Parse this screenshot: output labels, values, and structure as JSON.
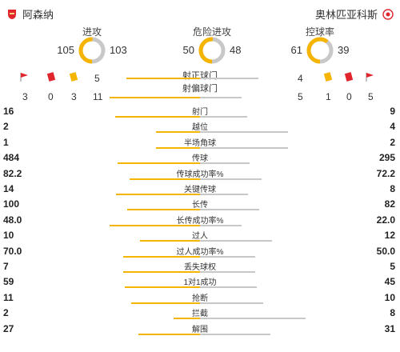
{
  "teams": {
    "home": "阿森纳",
    "away": "奥林匹亚科斯",
    "home_color": "#e0262c",
    "away_color": "#e0262c"
  },
  "dials": [
    {
      "label": "进攻",
      "home": 105,
      "away": 103
    },
    {
      "label": "危险进攻",
      "home": 50,
      "away": 48
    },
    {
      "label": "控球率",
      "home": 61,
      "away": 39
    }
  ],
  "shots_on": {
    "label": "射正球门",
    "home": 5,
    "away": 4
  },
  "shots_off": {
    "label": "射偏球门",
    "home": 11,
    "away": 5
  },
  "cards": {
    "home": {
      "corners": 3,
      "red": 0,
      "yellow": 3
    },
    "away": {
      "yellow": 1,
      "red": 0,
      "corners": 5
    }
  },
  "colors": {
    "home_bar": "#f5b400",
    "away_bar": "#c8c8c8",
    "red_card": "#e0262c",
    "yellow_card": "#f5b400"
  },
  "stats": [
    {
      "label": "射门",
      "home": "16",
      "away": "9",
      "hv": 16,
      "av": 9
    },
    {
      "label": "越位",
      "home": "2",
      "away": "4",
      "hv": 2,
      "av": 4
    },
    {
      "label": "半场角球",
      "home": "1",
      "away": "2",
      "hv": 1,
      "av": 2
    },
    {
      "label": "传球",
      "home": "484",
      "away": "295",
      "hv": 484,
      "av": 295
    },
    {
      "label": "传球成功率%",
      "home": "82.2",
      "away": "72.2",
      "hv": 82.2,
      "av": 72.2
    },
    {
      "label": "关键传球",
      "home": "14",
      "away": "8",
      "hv": 14,
      "av": 8
    },
    {
      "label": "长传",
      "home": "100",
      "away": "82",
      "hv": 100,
      "av": 82
    },
    {
      "label": "长传成功率%",
      "home": "48.0",
      "away": "22.0",
      "hv": 48.0,
      "av": 22.0
    },
    {
      "label": "过人",
      "home": "10",
      "away": "12",
      "hv": 10,
      "av": 12
    },
    {
      "label": "过人成功率%",
      "home": "70.0",
      "away": "50.0",
      "hv": 70.0,
      "av": 50.0
    },
    {
      "label": "丢失球权",
      "home": "7",
      "away": "5",
      "hv": 7,
      "av": 5
    },
    {
      "label": "1对1成功",
      "home": "59",
      "away": "45",
      "hv": 59,
      "av": 45
    },
    {
      "label": "抢断",
      "home": "11",
      "away": "10",
      "hv": 11,
      "av": 10
    },
    {
      "label": "拦截",
      "home": "2",
      "away": "8",
      "hv": 2,
      "av": 8
    },
    {
      "label": "解围",
      "home": "27",
      "away": "31",
      "hv": 27,
      "av": 31
    }
  ]
}
